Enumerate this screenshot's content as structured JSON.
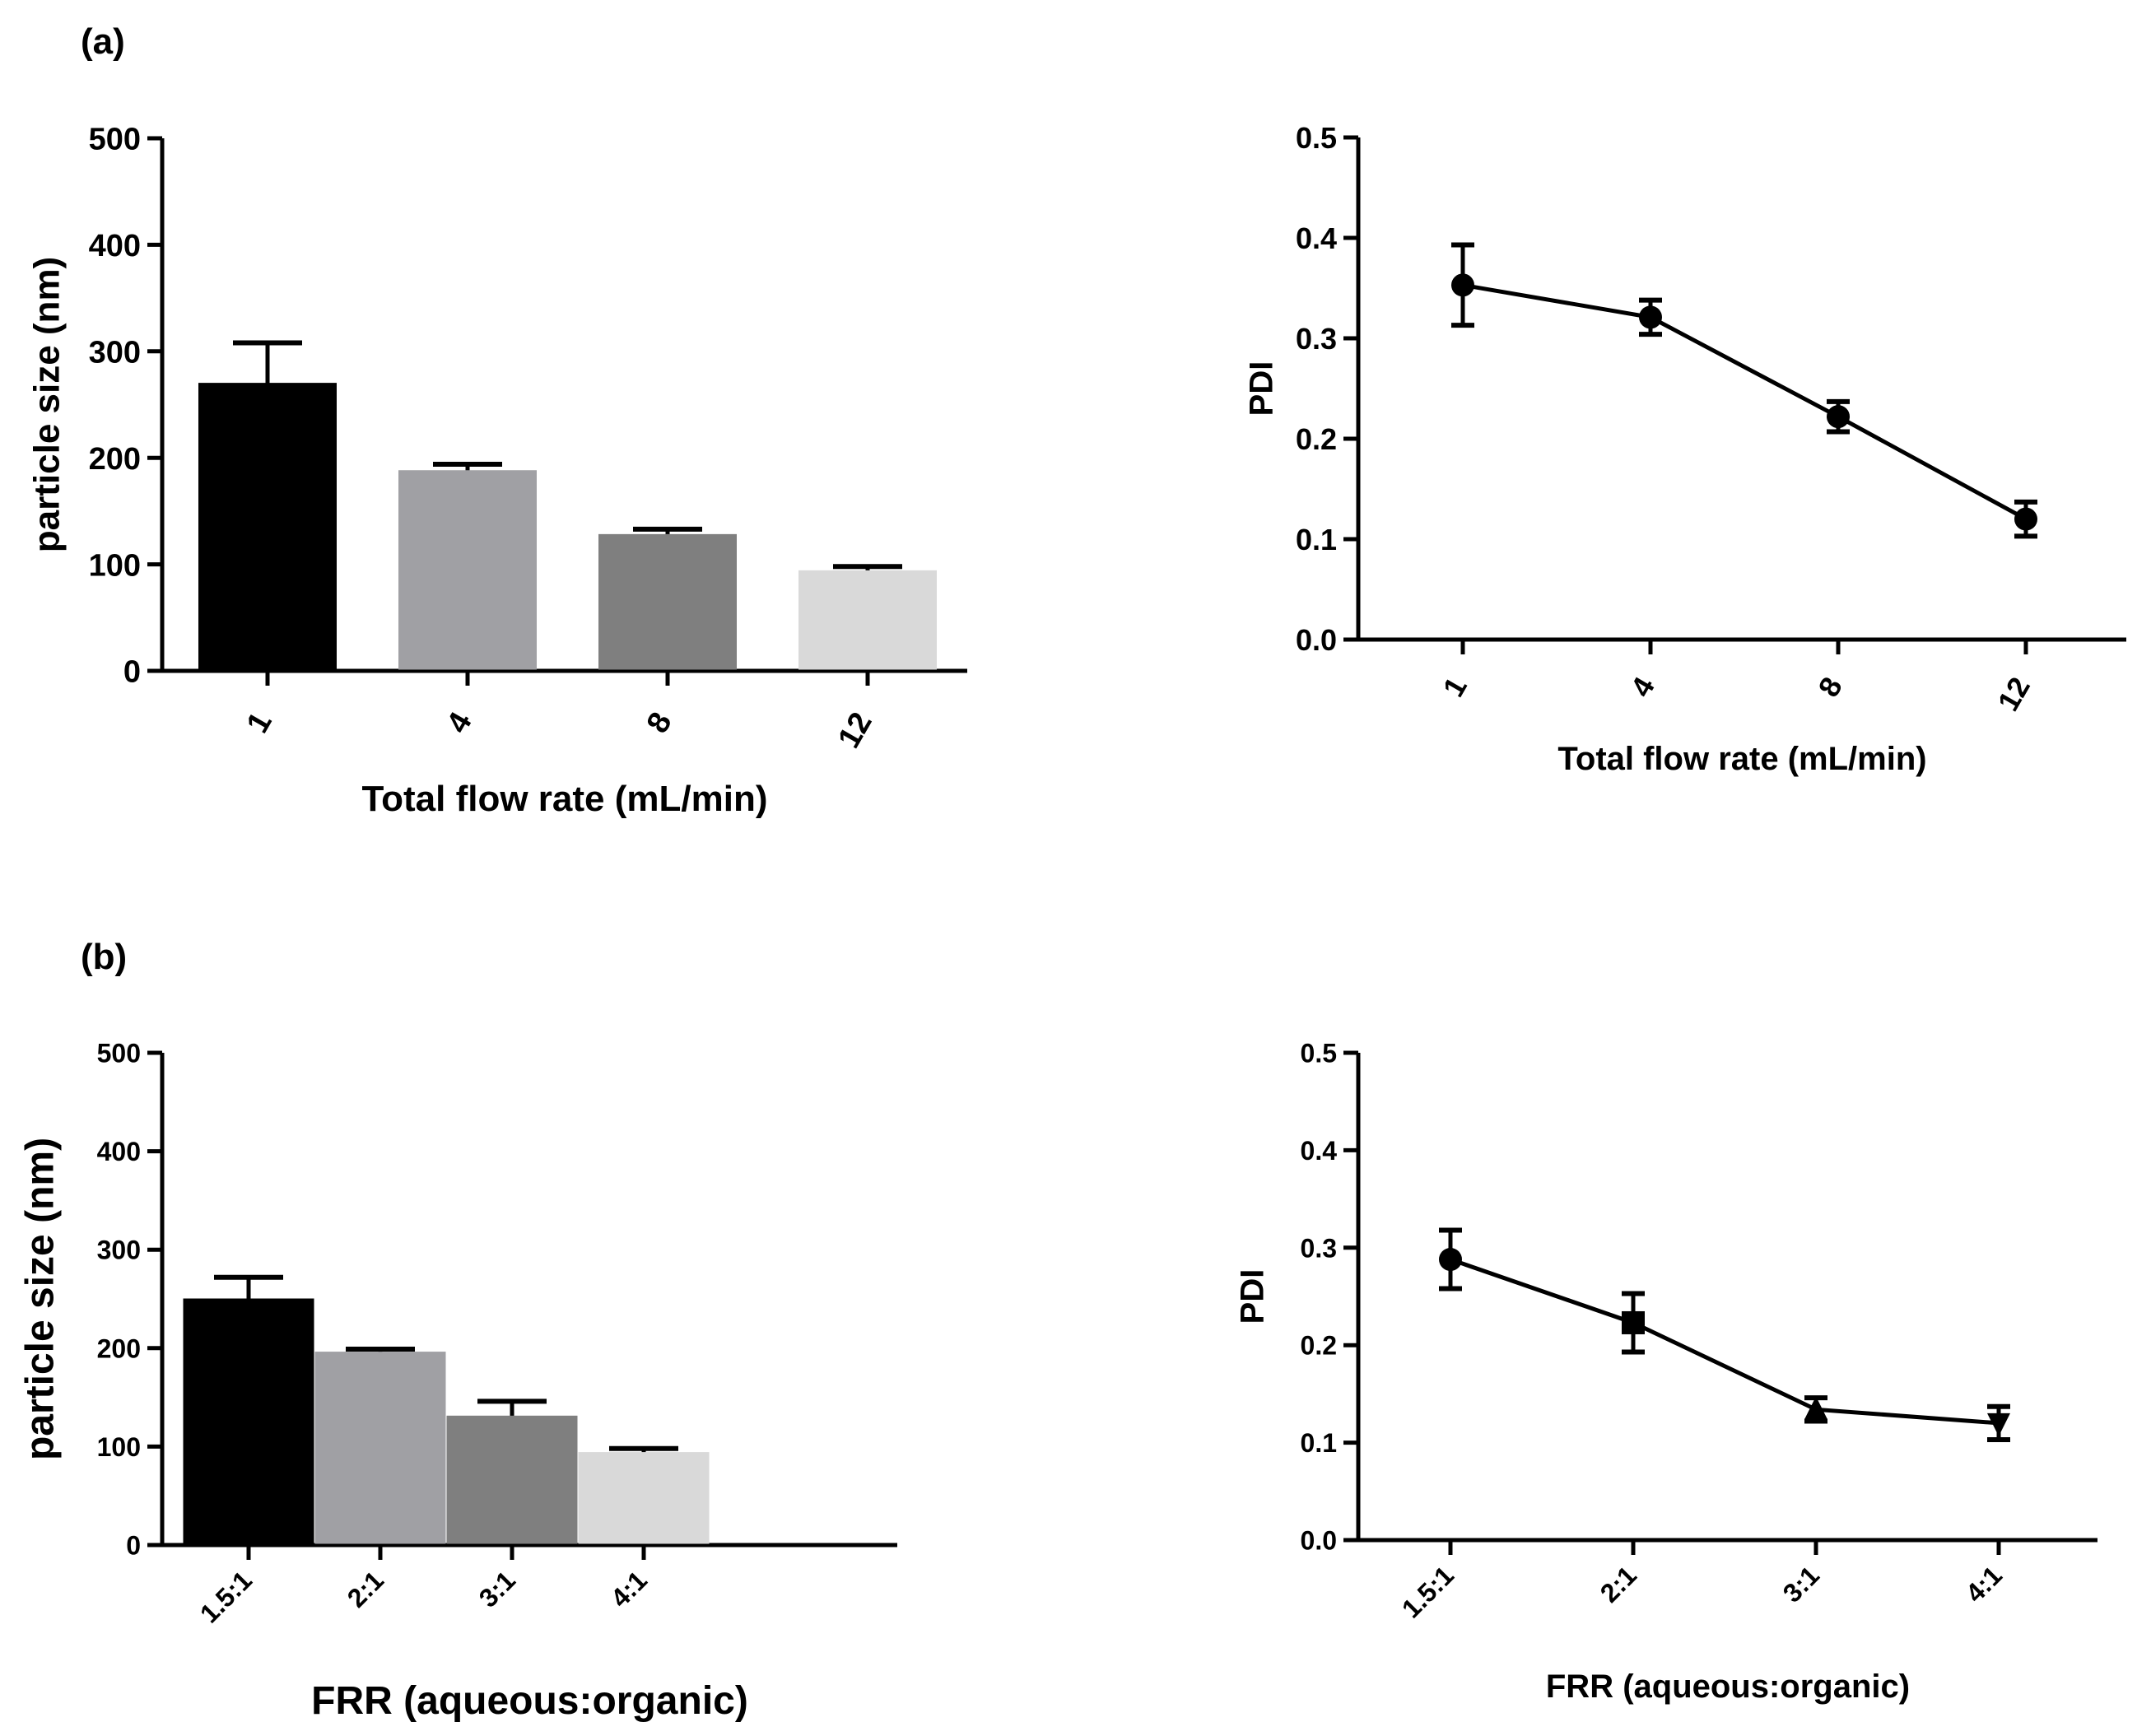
{
  "panels": {
    "a": "(a)",
    "b": "(b)"
  },
  "chart_data": [
    {
      "id": "a-bar",
      "type": "bar",
      "xlabel": "Total flow rate (mL/min)",
      "ylabel": "particle size (nm)",
      "categories": [
        "1",
        "4",
        "8",
        "12"
      ],
      "values": [
        270,
        188,
        128,
        94
      ],
      "errors": [
        38,
        6,
        5,
        4
      ],
      "colors": [
        "#000000",
        "#a0a0a4",
        "#7f7f7f",
        "#d9d9d9"
      ],
      "ylim": [
        0,
        500
      ],
      "yticks": [
        "0",
        "100",
        "200",
        "300",
        "400",
        "500"
      ],
      "tick_values": [
        0,
        100,
        200,
        300,
        400,
        500
      ]
    },
    {
      "id": "a-line",
      "type": "line",
      "xlabel": "Total flow rate (mL/min)",
      "ylabel": "PDI",
      "categories": [
        "1",
        "4",
        "8",
        "12"
      ],
      "values": [
        0.353,
        0.321,
        0.222,
        0.12
      ],
      "errors": [
        0.04,
        0.017,
        0.015,
        0.017
      ],
      "markers": [
        "circle",
        "circle",
        "circle",
        "circle"
      ],
      "ylim": [
        0,
        0.5
      ],
      "yticks": [
        "0.0",
        "0.1",
        "0.2",
        "0.3",
        "0.4",
        "0.5"
      ],
      "tick_values": [
        0,
        0.1,
        0.2,
        0.3,
        0.4,
        0.5
      ]
    },
    {
      "id": "b-bar",
      "type": "bar",
      "xlabel": "FRR (aqueous:organic)",
      "ylabel": "particle size (nm)",
      "categories": [
        "1.5:1",
        "2:1",
        "3:1",
        "4:1"
      ],
      "values": [
        250,
        196,
        131,
        94
      ],
      "errors": [
        22,
        3,
        15,
        4
      ],
      "colors": [
        "#000000",
        "#a0a0a4",
        "#7f7f7f",
        "#d9d9d9"
      ],
      "ylim": [
        0,
        500
      ],
      "yticks": [
        "0",
        "100",
        "200",
        "300",
        "400",
        "500"
      ],
      "tick_values": [
        0,
        100,
        200,
        300,
        400,
        500
      ]
    },
    {
      "id": "b-line",
      "type": "line",
      "xlabel": "FRR (aqueous:organic)",
      "ylabel": "PDI",
      "categories": [
        "1.5:1",
        "2:1",
        "3:1",
        "4:1"
      ],
      "values": [
        0.288,
        0.223,
        0.134,
        0.12
      ],
      "errors": [
        0.03,
        0.03,
        0.012,
        0.017
      ],
      "markers": [
        "circle",
        "square",
        "triangle-up",
        "triangle-down"
      ],
      "ylim": [
        0,
        0.5
      ],
      "yticks": [
        "0.0",
        "0.1",
        "0.2",
        "0.3",
        "0.4",
        "0.5"
      ],
      "tick_values": [
        0,
        0.1,
        0.2,
        0.3,
        0.4,
        0.5
      ]
    }
  ]
}
